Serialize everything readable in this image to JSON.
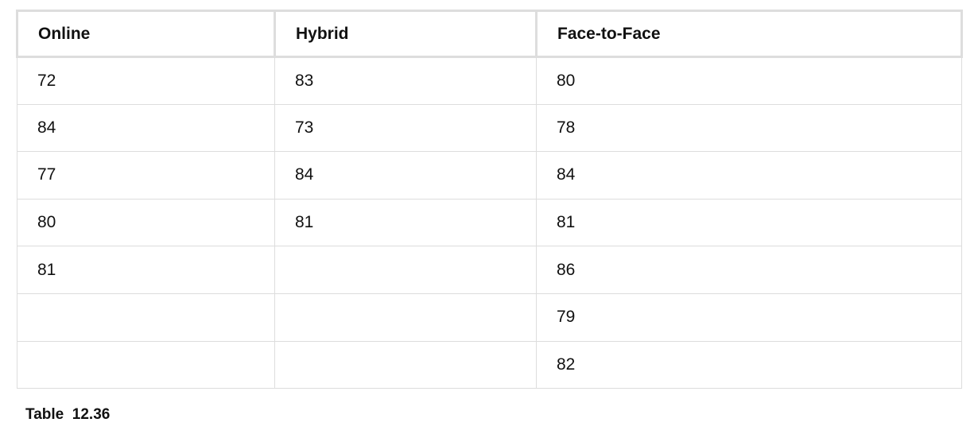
{
  "table": {
    "headers": [
      "Online",
      "Hybrid",
      "Face-to-Face"
    ],
    "rows": [
      [
        "72",
        "83",
        "80"
      ],
      [
        "84",
        "73",
        "78"
      ],
      [
        "77",
        "84",
        "84"
      ],
      [
        "80",
        "81",
        "81"
      ],
      [
        "81",
        "",
        "86"
      ],
      [
        "",
        "",
        "79"
      ],
      [
        "",
        "",
        "82"
      ]
    ]
  },
  "caption": {
    "label": "Table",
    "number": "12.36"
  }
}
